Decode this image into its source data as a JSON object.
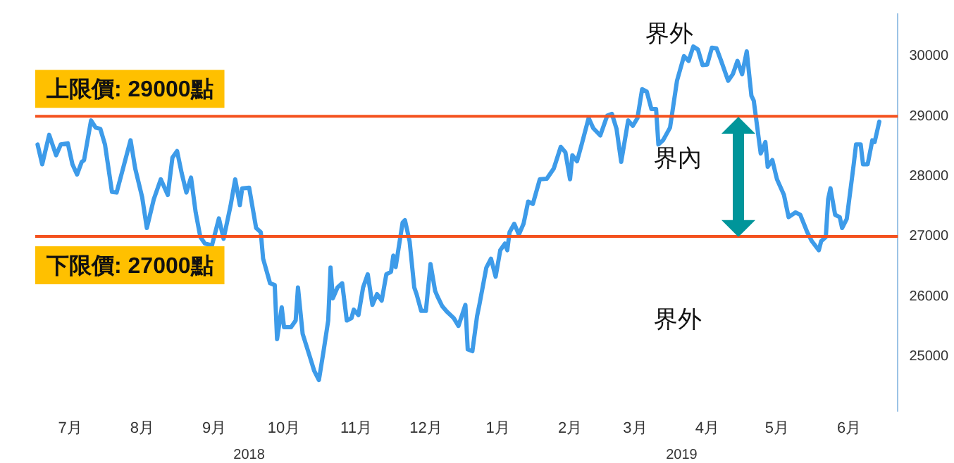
{
  "chart_data": {
    "type": "line",
    "x": [
      "2018-07-01",
      "2018-07-03",
      "2018-07-06",
      "2018-07-09",
      "2018-07-11",
      "2018-07-14",
      "2018-07-16",
      "2018-07-18",
      "2018-07-20",
      "2018-07-21",
      "2018-07-24",
      "2018-07-26",
      "2018-07-28",
      "2018-07-30",
      "2018-08-02",
      "2018-08-04",
      "2018-08-08",
      "2018-08-10",
      "2018-08-12",
      "2018-08-15",
      "2018-08-17",
      "2018-08-20",
      "2018-08-23",
      "2018-08-26",
      "2018-08-28",
      "2018-08-30",
      "2018-09-01",
      "2018-09-03",
      "2018-09-05",
      "2018-09-07",
      "2018-09-09",
      "2018-09-11",
      "2018-09-14",
      "2018-09-17",
      "2018-09-19",
      "2018-09-22",
      "2018-09-24",
      "2018-09-26",
      "2018-09-27",
      "2018-09-30",
      "2018-10-03",
      "2018-10-05",
      "2018-10-06",
      "2018-10-09",
      "2018-10-11",
      "2018-10-12",
      "2018-10-14",
      "2018-10-15",
      "2018-10-18",
      "2018-10-20",
      "2018-10-21",
      "2018-10-23",
      "2018-10-26",
      "2018-10-28",
      "2018-10-30",
      "2018-11-01",
      "2018-11-03",
      "2018-11-04",
      "2018-11-05",
      "2018-11-07",
      "2018-11-09",
      "2018-11-11",
      "2018-11-13",
      "2018-11-14",
      "2018-11-16",
      "2018-11-18",
      "2018-11-20",
      "2018-11-22",
      "2018-11-24",
      "2018-11-26",
      "2018-11-28",
      "2018-11-30",
      "2018-12-01",
      "2018-12-02",
      "2018-12-05",
      "2018-12-06",
      "2018-12-08",
      "2018-12-10",
      "2018-12-11",
      "2018-12-13",
      "2018-12-15",
      "2018-12-17",
      "2018-12-19",
      "2018-12-20",
      "2018-12-22",
      "2018-12-24",
      "2018-12-27",
      "2018-12-29",
      "2019-01-01",
      "2019-01-02",
      "2019-01-04",
      "2019-01-06",
      "2019-01-07",
      "2019-01-10",
      "2019-01-12",
      "2019-01-14",
      "2019-01-16",
      "2019-01-18",
      "2019-01-19",
      "2019-01-20",
      "2019-01-22",
      "2019-01-24",
      "2019-01-26",
      "2019-01-28",
      "2019-01-30",
      "2019-02-02",
      "2019-02-05",
      "2019-02-08",
      "2019-02-11",
      "2019-02-13",
      "2019-02-15",
      "2019-02-16",
      "2019-02-18",
      "2019-02-20",
      "2019-02-23",
      "2019-02-25",
      "2019-02-28",
      "2019-03-03",
      "2019-03-05",
      "2019-03-07",
      "2019-03-09",
      "2019-03-12",
      "2019-03-14",
      "2019-03-16",
      "2019-03-18",
      "2019-03-20",
      "2019-03-22",
      "2019-03-24",
      "2019-03-25",
      "2019-03-27",
      "2019-03-30",
      "2019-04-02",
      "2019-04-05",
      "2019-04-07",
      "2019-04-09",
      "2019-04-11",
      "2019-04-13",
      "2019-04-15",
      "2019-04-17",
      "2019-04-19",
      "2019-04-21",
      "2019-04-24",
      "2019-04-26",
      "2019-04-28",
      "2019-04-30",
      "2019-05-02",
      "2019-05-04",
      "2019-05-05",
      "2019-05-08",
      "2019-05-10",
      "2019-05-11",
      "2019-05-13",
      "2019-05-15",
      "2019-05-18",
      "2019-05-20",
      "2019-05-23",
      "2019-05-25",
      "2019-05-28",
      "2019-05-30",
      "2019-06-02",
      "2019-06-03",
      "2019-06-05",
      "2019-06-06",
      "2019-06-07",
      "2019-06-09",
      "2019-06-11",
      "2019-06-12",
      "2019-06-14",
      "2019-06-17",
      "2019-06-18",
      "2019-06-20",
      "2019-06-21",
      "2019-06-23",
      "2019-06-25",
      "2019-06-26",
      "2019-06-28"
    ],
    "series": [
      {
        "color": "#3d9be9",
        "values": [
          28530,
          28200,
          28690,
          28350,
          28530,
          28550,
          28200,
          28030,
          28240,
          28270,
          28930,
          28810,
          28790,
          28530,
          27740,
          27730,
          28310,
          28600,
          28130,
          27650,
          27140,
          27620,
          27950,
          27690,
          28310,
          28420,
          28050,
          27730,
          27980,
          27400,
          26990,
          26880,
          26850,
          27300,
          26960,
          27510,
          27950,
          27520,
          27800,
          27810,
          27140,
          27070,
          26630,
          26220,
          26190,
          25290,
          25820,
          25490,
          25490,
          25600,
          26150,
          25380,
          25010,
          24760,
          24610,
          25090,
          25600,
          26480,
          25970,
          26150,
          26220,
          25600,
          25640,
          25780,
          25690,
          26150,
          26370,
          25860,
          26040,
          25930,
          26370,
          26410,
          26680,
          26490,
          27230,
          27270,
          26920,
          26150,
          26040,
          25760,
          25760,
          26540,
          26090,
          26000,
          25840,
          25750,
          25640,
          25510,
          25860,
          25120,
          25090,
          25670,
          25860,
          26480,
          26630,
          26330,
          26770,
          26880,
          26770,
          27070,
          27210,
          27030,
          27210,
          27580,
          27540,
          27950,
          27960,
          28130,
          28490,
          28400,
          27950,
          28350,
          28250,
          28530,
          28970,
          28800,
          28680,
          29010,
          29040,
          28790,
          28240,
          28930,
          28840,
          28970,
          29450,
          29410,
          29120,
          29120,
          28530,
          28600,
          28810,
          29590,
          30000,
          29920,
          30160,
          30110,
          29850,
          29860,
          30140,
          30130,
          29920,
          29590,
          29700,
          29920,
          29700,
          30080,
          29340,
          29260,
          28380,
          28570,
          28160,
          28270,
          27950,
          27690,
          27320,
          27400,
          27360,
          27070,
          26920,
          26770,
          26920,
          26990,
          27620,
          27800,
          27360,
          27320,
          27140,
          27290,
          28200,
          28530,
          28530,
          28200,
          28200,
          28600,
          28570,
          28910
        ]
      }
    ],
    "xlim": [
      "2018-06-30",
      "2019-07-06"
    ],
    "xticks": [
      {
        "value": "2018-07-15",
        "label": "7月"
      },
      {
        "value": "2018-08-15",
        "label": "8月"
      },
      {
        "value": "2018-09-15",
        "label": "9月"
      },
      {
        "value": "2018-10-15",
        "label": "10月"
      },
      {
        "value": "2018-11-15",
        "label": "11月"
      },
      {
        "value": "2018-12-15",
        "label": "12月"
      },
      {
        "value": "2019-01-15",
        "label": "1月"
      },
      {
        "value": "2019-02-15",
        "label": "2月"
      },
      {
        "value": "2019-03-15",
        "label": "3月"
      },
      {
        "value": "2019-04-15",
        "label": "4月"
      },
      {
        "value": "2019-05-15",
        "label": "5月"
      },
      {
        "value": "2019-06-15",
        "label": "6月"
      }
    ],
    "x2lim": [
      "2018-06-30",
      "2019-07-06"
    ],
    "x2ticks": [
      {
        "value": "2018-09-30",
        "label": "2018"
      },
      {
        "value": "2019-04-04",
        "label": "2019"
      }
    ],
    "ylim": [
      24100,
      30700
    ],
    "yticks": [
      25000,
      26000,
      27000,
      28000,
      29000,
      30000
    ],
    "ref_lines": [
      {
        "axis": "y",
        "value": 29000,
        "label": "上限價: 29000點",
        "color": "#f4511e"
      },
      {
        "axis": "y",
        "value": 27000,
        "label": "下限價: 27000點",
        "color": "#f4511e"
      }
    ],
    "annotations": [
      "界外",
      "界內",
      "界外"
    ],
    "grid": false,
    "legend": false,
    "marker": "none",
    "line_style": "solid"
  }
}
